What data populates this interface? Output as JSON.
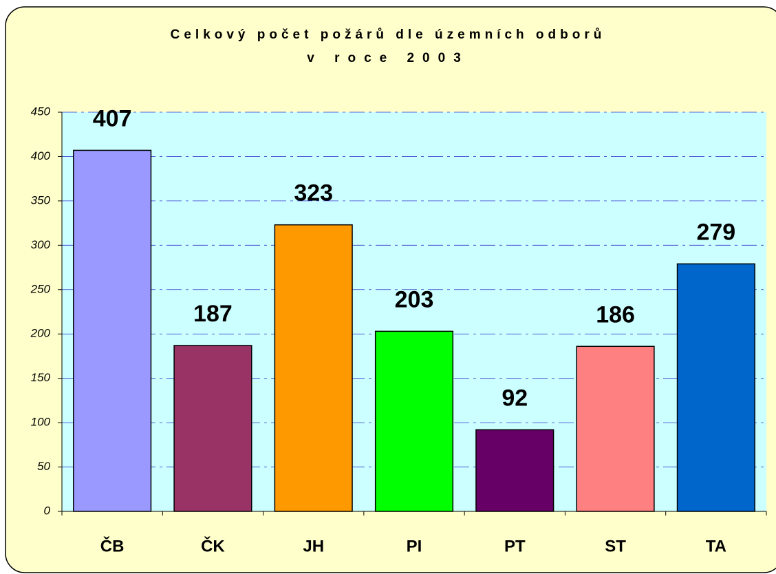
{
  "chart_data": {
    "type": "bar",
    "title": [
      "Celkový počet požárů dle územních odborů",
      "v roce 2003"
    ],
    "categories": [
      "ČB",
      "ČK",
      "JH",
      "PI",
      "PT",
      "ST",
      "TA"
    ],
    "values": [
      407,
      187,
      323,
      203,
      92,
      186,
      279
    ],
    "colors": [
      "#9999ff",
      "#993366",
      "#ff9900",
      "#00ff00",
      "#660066",
      "#ff8080",
      "#0066cc"
    ],
    "ylim": [
      0,
      450
    ],
    "yticks": [
      0,
      50,
      100,
      150,
      200,
      250,
      300,
      350,
      400,
      450
    ],
    "grid": true
  }
}
